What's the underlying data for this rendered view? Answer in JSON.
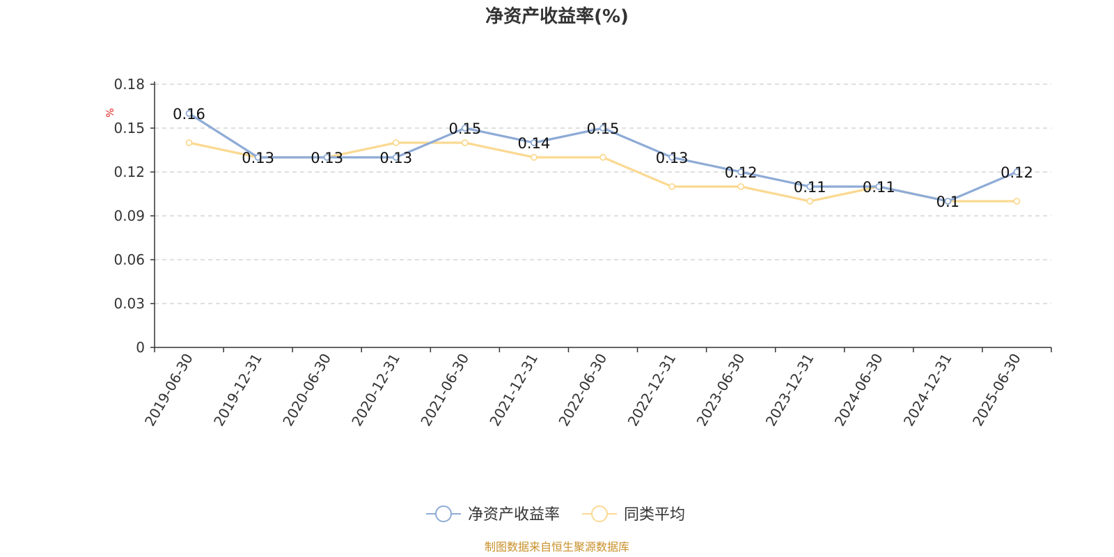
{
  "chart_data": {
    "type": "line",
    "title": "净资产收益率(%)",
    "ylabel": "%",
    "xlabel": "",
    "ylim": [
      0,
      0.18
    ],
    "yticks": [
      "0",
      "0.03",
      "0.06",
      "0.09",
      "0.12",
      "0.15",
      "0.18"
    ],
    "grid": true,
    "legend_position": "bottom",
    "categories": [
      "2019-06-30",
      "2019-12-31",
      "2020-06-30",
      "2020-12-31",
      "2021-06-30",
      "2021-12-31",
      "2022-06-30",
      "2022-12-31",
      "2023-06-30",
      "2023-12-31",
      "2024-06-30",
      "2024-12-31",
      "2025-06-30"
    ],
    "series": [
      {
        "name": "净资产收益率",
        "color": "#8eabd6",
        "values": [
          0.16,
          0.13,
          0.13,
          0.13,
          0.15,
          0.14,
          0.15,
          0.13,
          0.12,
          0.11,
          0.11,
          0.1,
          0.12
        ],
        "labels": [
          "0.16",
          "0.13",
          "0.13",
          "0.13",
          "0.15",
          "0.14",
          "0.15",
          "0.13",
          "0.12",
          "0.11",
          "0.11",
          "0.1",
          "0.12"
        ]
      },
      {
        "name": "同类平均",
        "color": "#fbd992",
        "values": [
          0.14,
          0.13,
          0.13,
          0.14,
          0.14,
          0.13,
          0.13,
          0.11,
          0.11,
          0.1,
          0.11,
          0.1,
          0.1
        ]
      }
    ],
    "source": "制图数据来自恒生聚源数据库"
  }
}
